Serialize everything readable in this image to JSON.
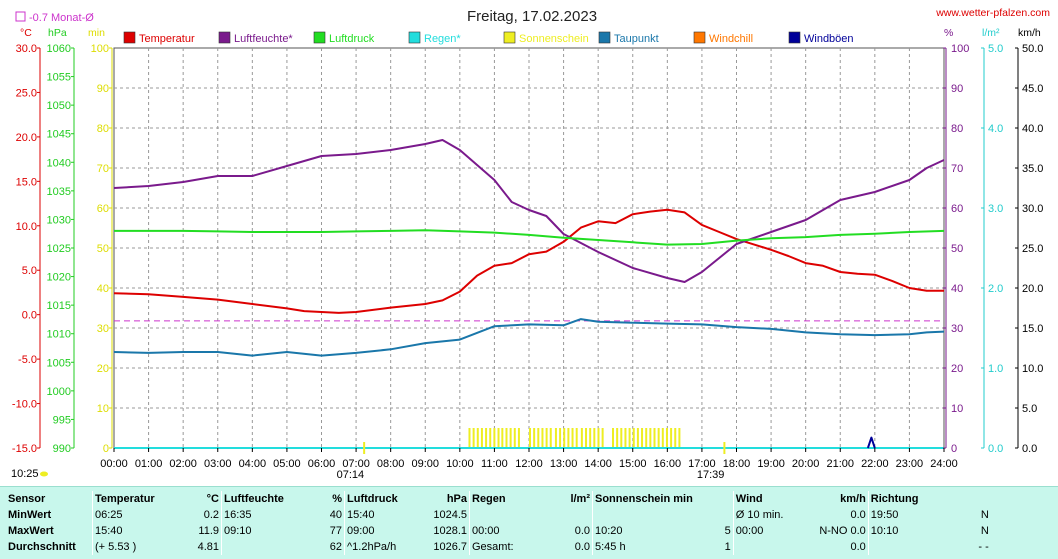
{
  "header": {
    "title": "Freitag, 17.02.2023",
    "site": "www.wetter-pfalzen.com",
    "monthly_avg_label": "-0.7 Monat-Ø",
    "units": {
      "temp": "°C",
      "press": "hPa",
      "min": "min",
      "pct": "%",
      "rain": "l/m²",
      "wind": "km/h"
    }
  },
  "colors": {
    "temperature": "#dd0000",
    "humidity": "#7a1a8c",
    "pressure": "#22dd22",
    "rain": "#22dddd",
    "sunshine": "#eeee22",
    "dewpoint": "#1a77aa",
    "windchill": "#ff7700",
    "gusts": "#000099",
    "monthly_avg": "#cc33cc",
    "temp_axis": "#dd0000",
    "press_axis": "#22cc22",
    "min_axis": "#dddd00",
    "pct_axis": "#7a1a8c",
    "rain_axis": "#22cccc",
    "wind_axis": "#000000"
  },
  "legend": [
    {
      "key": "temperature",
      "label": "Temperatur"
    },
    {
      "key": "humidity",
      "label": "Luftfeuchte*"
    },
    {
      "key": "pressure",
      "label": "Luftdruck"
    },
    {
      "key": "rain",
      "label": "Regen*"
    },
    {
      "key": "sunshine",
      "label": "Sonnenschein"
    },
    {
      "key": "dewpoint",
      "label": "Taupunkt"
    },
    {
      "key": "windchill",
      "label": "Windchill"
    },
    {
      "key": "gusts",
      "label": "Windböen"
    }
  ],
  "chart_data": {
    "type": "line",
    "title": "Freitag, 17.02.2023",
    "x_ticks": [
      "00:00",
      "01:00",
      "02:00",
      "03:00",
      "04:00",
      "05:00",
      "06:00",
      "07:00",
      "08:00",
      "09:00",
      "10:00",
      "11:00",
      "12:00",
      "13:00",
      "14:00",
      "15:00",
      "16:00",
      "17:00",
      "18:00",
      "19:00",
      "20:00",
      "21:00",
      "22:00",
      "23:00",
      "24:00"
    ],
    "axes": {
      "temp": {
        "label": "°C",
        "min": -15,
        "max": 30,
        "ticks": [
          "30.0",
          "25.0",
          "20.0",
          "15.0",
          "10.0",
          "5.0",
          "0.0",
          "-5.0",
          "-10.0",
          "-15.0"
        ]
      },
      "pressure": {
        "label": "hPa",
        "min": 990,
        "max": 1060,
        "ticks": [
          "1060",
          "1055",
          "1050",
          "1045",
          "1040",
          "1035",
          "1030",
          "1025",
          "1020",
          "1015",
          "1010",
          "1005",
          "1000",
          "995",
          "990"
        ]
      },
      "minutes": {
        "label": "min",
        "min": 0,
        "max": 100,
        "ticks": [
          "100",
          "90",
          "80",
          "70",
          "60",
          "50",
          "40",
          "30",
          "20",
          "10",
          "0"
        ]
      },
      "percent": {
        "label": "%",
        "min": 0,
        "max": 100,
        "ticks": [
          "100",
          "90",
          "80",
          "70",
          "60",
          "50",
          "40",
          "30",
          "20",
          "10",
          "0"
        ]
      },
      "rain": {
        "label": "l/m²",
        "min": 0,
        "max": 5,
        "ticks": [
          "5.0",
          "4.0",
          "3.0",
          "2.0",
          "1.0",
          "0.0"
        ]
      },
      "wind": {
        "label": "km/h",
        "min": 0,
        "max": 50,
        "ticks": [
          "50.0",
          "45.0",
          "40.0",
          "35.0",
          "30.0",
          "25.0",
          "20.0",
          "15.0",
          "10.0",
          "5.0",
          "0.0"
        ]
      }
    },
    "monthly_avg_temp": -0.7,
    "series": [
      {
        "key": "temperature",
        "name": "Temperatur",
        "axis": "temp",
        "x": [
          0,
          1,
          2,
          3,
          4,
          5,
          5.5,
          6.5,
          7,
          8,
          9,
          9.5,
          10,
          10.5,
          11,
          11.5,
          12,
          12.5,
          13,
          13.5,
          14,
          14.5,
          15,
          15.5,
          16,
          16.5,
          17,
          17.5,
          18,
          18.5,
          19,
          19.5,
          20,
          20.5,
          21,
          21.5,
          22,
          22.5,
          23,
          23.5,
          24
        ],
        "y": [
          2.4,
          2.3,
          2.0,
          1.7,
          1.2,
          0.7,
          0.4,
          0.2,
          0.3,
          0.8,
          1.2,
          1.6,
          2.6,
          4.4,
          5.5,
          5.8,
          6.8,
          7.1,
          8.2,
          9.8,
          10.5,
          10.3,
          11.3,
          11.6,
          11.8,
          11.5,
          10.1,
          9.3,
          8.5,
          7.9,
          7.3,
          6.6,
          5.8,
          5.5,
          4.8,
          4.6,
          4.5,
          3.8,
          3.0,
          2.7,
          2.7
        ]
      },
      {
        "key": "humidity",
        "name": "Luftfeuchte*",
        "axis": "percent",
        "x": [
          0,
          1,
          2,
          3,
          4,
          5,
          6,
          7,
          8,
          9,
          9.5,
          10,
          11,
          11.5,
          12,
          12.5,
          13,
          14,
          15,
          16,
          16.5,
          17,
          18,
          19,
          20,
          21,
          22,
          23,
          23.5,
          24
        ],
        "y": [
          65,
          65.5,
          66.5,
          68,
          68,
          70.5,
          73,
          73.5,
          74.5,
          76,
          77,
          74.5,
          67,
          61.5,
          59.5,
          58,
          53.5,
          49,
          45,
          42.5,
          41.5,
          44,
          51,
          54,
          57,
          62,
          64,
          67,
          70,
          72
        ]
      },
      {
        "key": "pressure",
        "name": "Luftdruck",
        "axis": "pressure",
        "x": [
          0,
          1,
          2,
          3,
          4,
          5,
          6,
          7,
          8,
          9,
          10,
          11,
          12,
          13,
          14,
          15,
          16,
          17,
          18,
          19,
          20,
          21,
          22,
          23,
          24
        ],
        "y": [
          1028.0,
          1028.0,
          1028.0,
          1027.9,
          1027.8,
          1027.8,
          1027.8,
          1027.9,
          1028.0,
          1028.1,
          1027.9,
          1027.7,
          1027.3,
          1026.8,
          1026.4,
          1026.0,
          1025.6,
          1025.7,
          1026.3,
          1026.7,
          1026.9,
          1027.3,
          1027.5,
          1027.8,
          1028.0
        ]
      },
      {
        "key": "dewpoint",
        "name": "Taupunkt",
        "axis": "temp",
        "x": [
          0,
          1,
          2,
          3,
          4,
          5,
          6,
          7,
          8,
          9,
          10,
          11,
          12,
          13,
          13.5,
          14,
          15,
          16,
          17,
          18,
          19,
          20,
          21,
          22,
          23,
          23.5,
          24
        ],
        "y": [
          -4.2,
          -4.3,
          -4.2,
          -4.2,
          -4.6,
          -4.2,
          -4.6,
          -4.3,
          -3.9,
          -3.2,
          -2.8,
          -1.3,
          -1.1,
          -1.2,
          -0.5,
          -0.8,
          -0.9,
          -1.0,
          -1.1,
          -1.4,
          -1.6,
          -2.0,
          -2.2,
          -2.3,
          -2.2,
          -2.0,
          -1.9
        ]
      },
      {
        "key": "rain",
        "name": "Regen*",
        "axis": "rain",
        "x": [
          0,
          24
        ],
        "y": [
          0,
          0
        ]
      },
      {
        "key": "gusts",
        "name": "Windböen",
        "axis": "wind",
        "x": [
          21.8,
          21.9,
          22.0
        ],
        "y": [
          0,
          1.3,
          0
        ]
      }
    ],
    "sunshine_intervals": [
      [
        10.25,
        11.1
      ],
      [
        11.2,
        11.75
      ],
      [
        12.0,
        12.65
      ],
      [
        12.75,
        13.4
      ],
      [
        13.5,
        14.2
      ],
      [
        14.4,
        16.35
      ]
    ],
    "sunrise": "07:14",
    "sunset": "17:39",
    "sunrise_h": 7.233,
    "sunset_h": 17.65,
    "current_time": "10:25"
  },
  "stats": {
    "header": [
      "Sensor",
      "Temperatur",
      "°C",
      "Luftfeuchte",
      "%",
      "Luftdruck",
      "hPa",
      "Regen",
      "l/m²",
      "Sonnenschein min",
      "",
      "Wind",
      "km/h",
      "Richtung",
      ""
    ],
    "rows": [
      [
        "MinWert",
        "06:25",
        "0.2",
        "16:35",
        "40",
        "15:40",
        "1024.5",
        "",
        "",
        "",
        "",
        "Ø 10 min.",
        "0.0",
        "19:50",
        "N"
      ],
      [
        "MaxWert",
        "15:40",
        "11.9",
        "09:10",
        "77",
        "09:00",
        "1028.1",
        "00:00",
        "0.0",
        "10:20",
        "5",
        "00:00",
        "N-NO 0.0",
        "10:10",
        "N"
      ],
      [
        "Durchschnitt",
        "(+ 5.53 )",
        "4.81",
        "",
        "62",
        "^1.2hPa/h",
        "1026.7",
        "Gesamt:",
        "0.0",
        "5:45 h",
        "1",
        "",
        "0.0",
        "",
        "- -"
      ]
    ]
  }
}
